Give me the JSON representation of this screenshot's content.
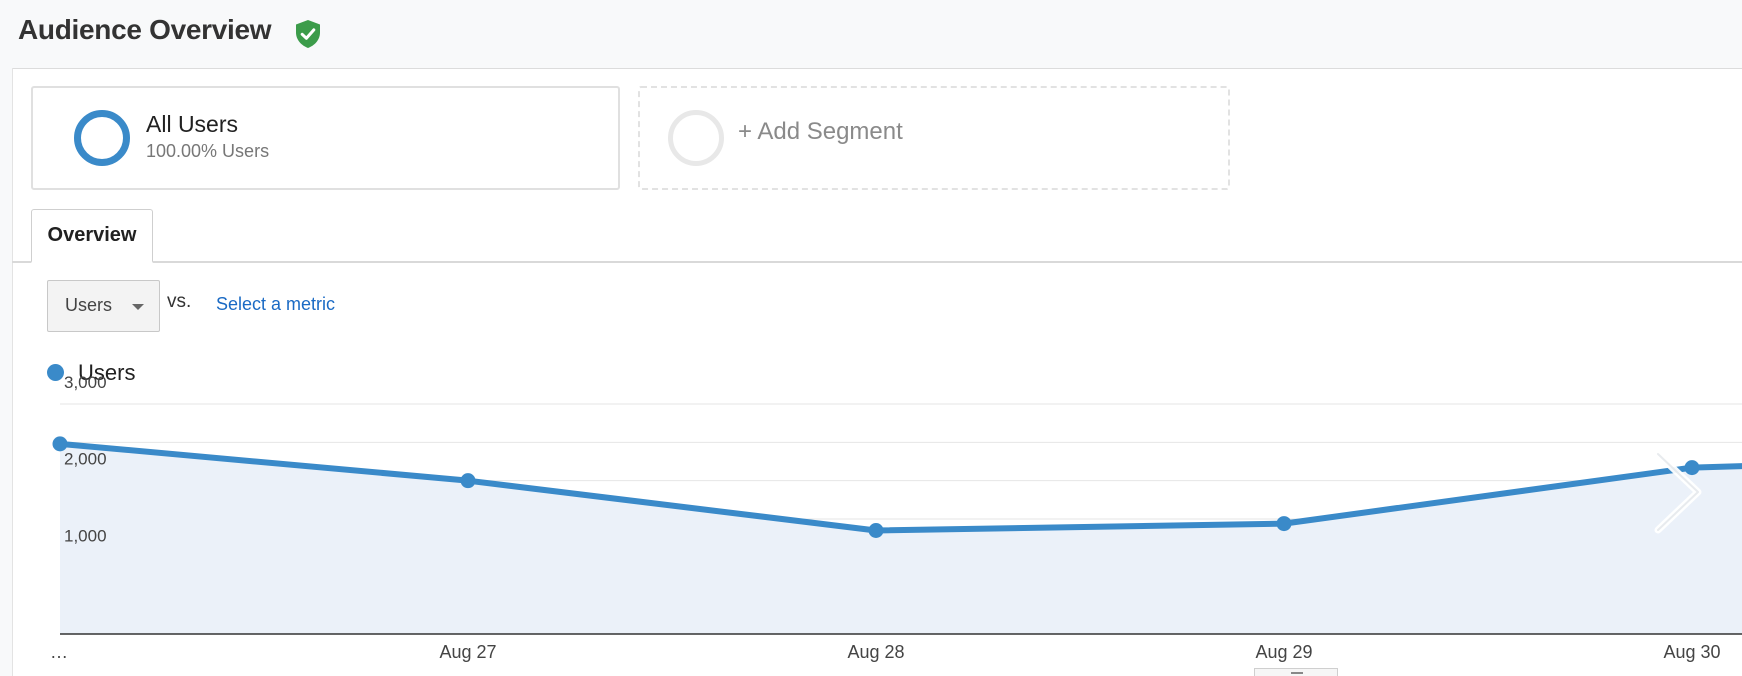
{
  "header": {
    "title": "Audience Overview",
    "verified_icon": "verified-shield-icon",
    "accent": "#3c9c4a"
  },
  "segments": {
    "active": {
      "name": "All Users",
      "detail": "100.00% Users",
      "color": "#3a8ac9"
    },
    "add_label": "+ Add Segment"
  },
  "tabs": [
    {
      "label": "Overview",
      "active": true
    }
  ],
  "metric_selector": {
    "selected": "Users",
    "vs_label": "vs.",
    "compare_link": "Select a metric"
  },
  "legend": {
    "series_name": "Users",
    "color": "#3a8ac9"
  },
  "navigation": {
    "next_icon": "chevron-right-icon"
  },
  "chart_data": {
    "type": "area",
    "x": [
      "…",
      "Aug 27",
      "Aug 28",
      "Aug 29",
      "Aug 30"
    ],
    "series": [
      {
        "name": "Users",
        "values": [
          2480,
          2000,
          1350,
          1440,
          2170
        ]
      }
    ],
    "ylim": [
      0,
      3000
    ],
    "y_ticks": [
      "1,000",
      "2,000",
      "3,000"
    ],
    "y_tick_values": [
      1000,
      2000,
      3000
    ],
    "grid": true,
    "line_color": "#3a8ac9",
    "fill_color": "#ebf1f9"
  }
}
